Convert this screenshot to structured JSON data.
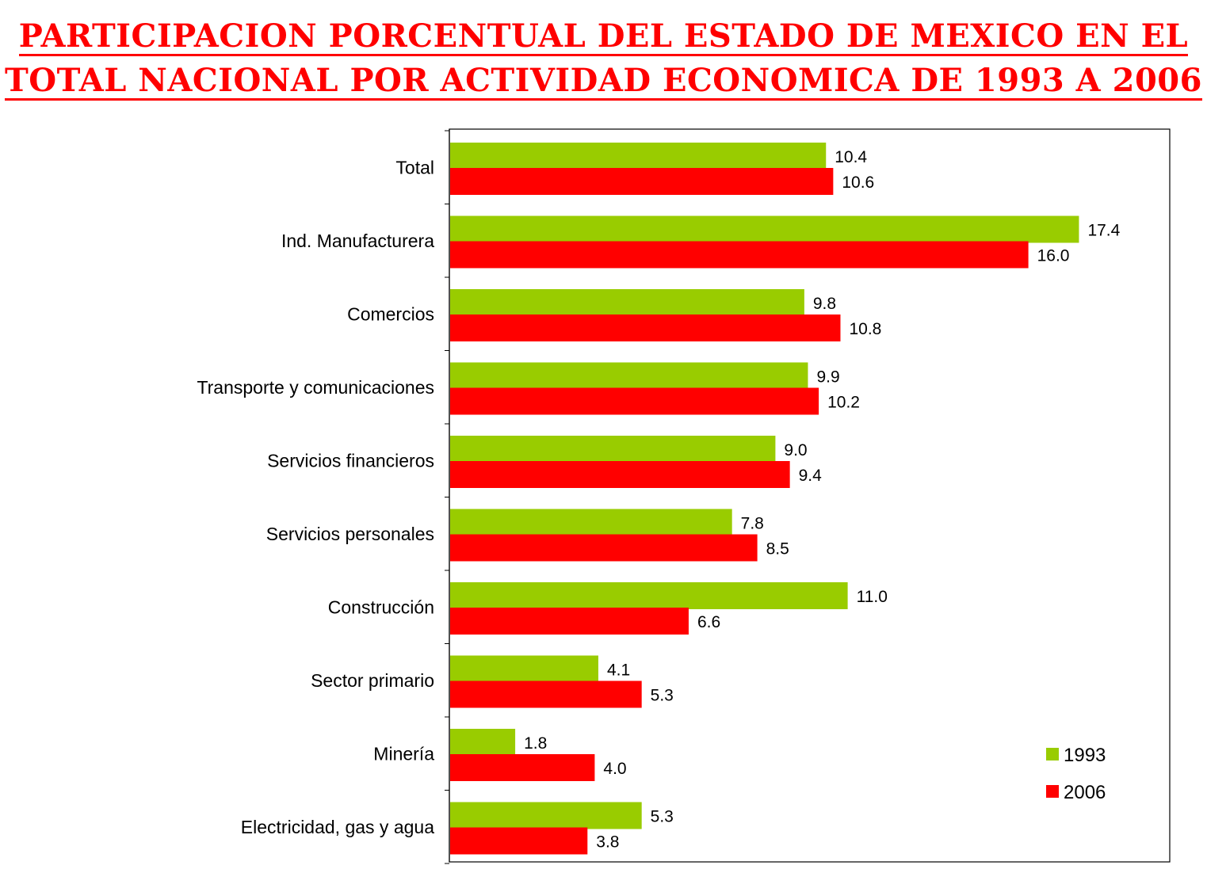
{
  "title": {
    "line1": "PARTICIPACION PORCENTUAL DEL ESTADO DE MEXICO EN EL",
    "line2": "TOTAL NACIONAL POR ACTIVIDAD  ECONOMICA DE 1993 A 2006"
  },
  "colors": {
    "title": "#ff0000",
    "series_1993": "#99cc00",
    "series_2006": "#ff0000"
  },
  "chart_data": {
    "type": "bar",
    "orientation": "horizontal",
    "title": "PARTICIPACION PORCENTUAL DEL ESTADO DE MEXICO EN EL TOTAL NACIONAL POR ACTIVIDAD  ECONOMICA DE 1993 A 2006",
    "categories": [
      "Total",
      "Ind. Manufacturera",
      "Comercios",
      "Transporte y comunicaciones",
      "Servicios financieros",
      "Servicios personales",
      "Construcción",
      "Sector primario",
      "Minería",
      "Electricidad, gas y agua"
    ],
    "series": [
      {
        "name": "1993",
        "color": "#99cc00",
        "values": [
          10.4,
          17.4,
          9.8,
          9.9,
          9.0,
          7.8,
          11.0,
          4.1,
          1.8,
          5.3
        ],
        "labels": [
          "10.4",
          "17.4",
          "9.8",
          "9.9",
          "9.0",
          "7.8",
          "11.0",
          "4.1",
          "1.8",
          "5.3"
        ]
      },
      {
        "name": "2006",
        "color": "#ff0000",
        "values": [
          10.6,
          16.0,
          10.8,
          10.2,
          9.4,
          8.5,
          6.6,
          5.3,
          4.0,
          3.8
        ],
        "labels": [
          "10.6",
          "16.0",
          "10.8",
          "10.2",
          "9.4",
          "8.5",
          "6.6",
          "5.3",
          "4.0",
          "3.8"
        ]
      }
    ],
    "xlim": [
      0,
      20
    ],
    "xlabel": "",
    "ylabel": "",
    "grid": false,
    "legend": "bottom-right"
  }
}
